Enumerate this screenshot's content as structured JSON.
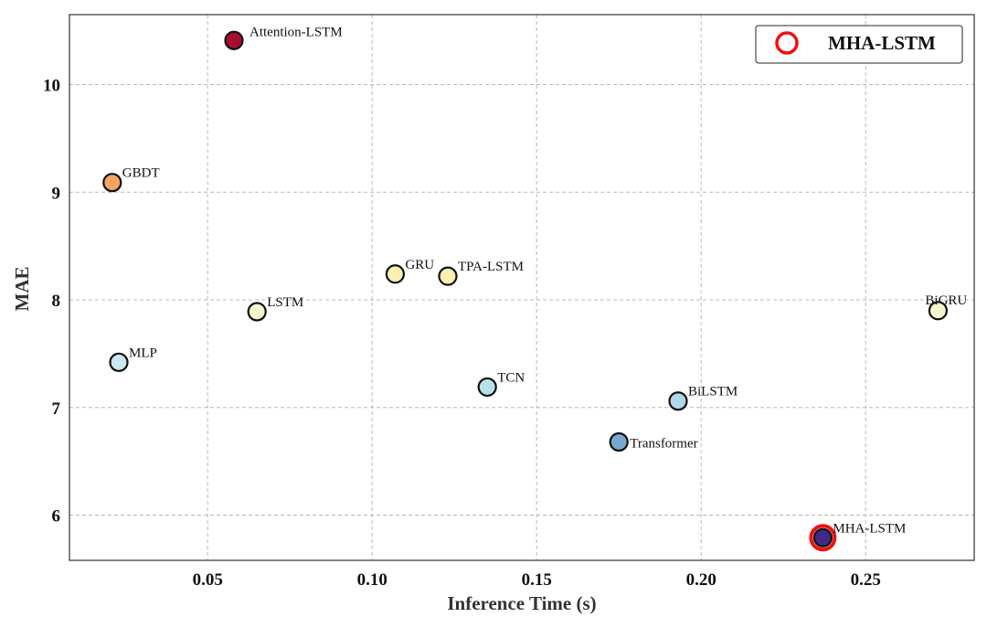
{
  "chart_data": {
    "type": "scatter",
    "title": "",
    "xlabel": "Inference Time (s)",
    "ylabel": "MAE",
    "xlim": [
      0.008,
      0.283
    ],
    "ylim": [
      5.58,
      10.65
    ],
    "xticks": [
      0.05,
      0.1,
      0.15,
      0.2,
      0.25
    ],
    "xtick_labels": [
      "0.05",
      "0.10",
      "0.15",
      "0.20",
      "0.25"
    ],
    "yticks": [
      6,
      7,
      8,
      9,
      10
    ],
    "ytick_labels": [
      "6",
      "7",
      "8",
      "9",
      "10"
    ],
    "grid": true,
    "legend": {
      "location": "top-right",
      "entries": [
        {
          "label": "MHA-LSTM",
          "marker": "hollow-circle",
          "color": "#ee1111"
        }
      ]
    },
    "points": [
      {
        "name": "Attention-LSTM",
        "x": 0.058,
        "y": 10.41,
        "color": "#a50f2d",
        "label_pos": "right"
      },
      {
        "name": "GBDT",
        "x": 0.021,
        "y": 9.09,
        "color": "#f6a461",
        "label_pos": "upper-right"
      },
      {
        "name": "GRU",
        "x": 0.107,
        "y": 8.24,
        "color": "#fdf0b0",
        "label_pos": "upper-right"
      },
      {
        "name": "TPA-LSTM",
        "x": 0.123,
        "y": 8.22,
        "color": "#fdf0b0",
        "label_pos": "upper-right"
      },
      {
        "name": "LSTM",
        "x": 0.065,
        "y": 7.89,
        "color": "#f5f7cc",
        "label_pos": "upper-right"
      },
      {
        "name": "BiGRU",
        "x": 0.272,
        "y": 7.9,
        "color": "#f5f7cc",
        "label_pos": "above"
      },
      {
        "name": "MLP",
        "x": 0.023,
        "y": 7.42,
        "color": "#cbe8f0",
        "label_pos": "upper-right"
      },
      {
        "name": "TCN",
        "x": 0.135,
        "y": 7.19,
        "color": "#b8e0ec",
        "label_pos": "upper-right"
      },
      {
        "name": "BiLSTM",
        "x": 0.193,
        "y": 7.06,
        "color": "#b0d6ea",
        "label_pos": "upper-right"
      },
      {
        "name": "Transformer",
        "x": 0.175,
        "y": 6.68,
        "color": "#78a9d0",
        "label_pos": "right"
      },
      {
        "name": "MHA-LSTM",
        "x": 0.237,
        "y": 5.79,
        "color": "#3f2a86",
        "ring": "#ee1111",
        "label_pos": "upper-right"
      }
    ]
  }
}
